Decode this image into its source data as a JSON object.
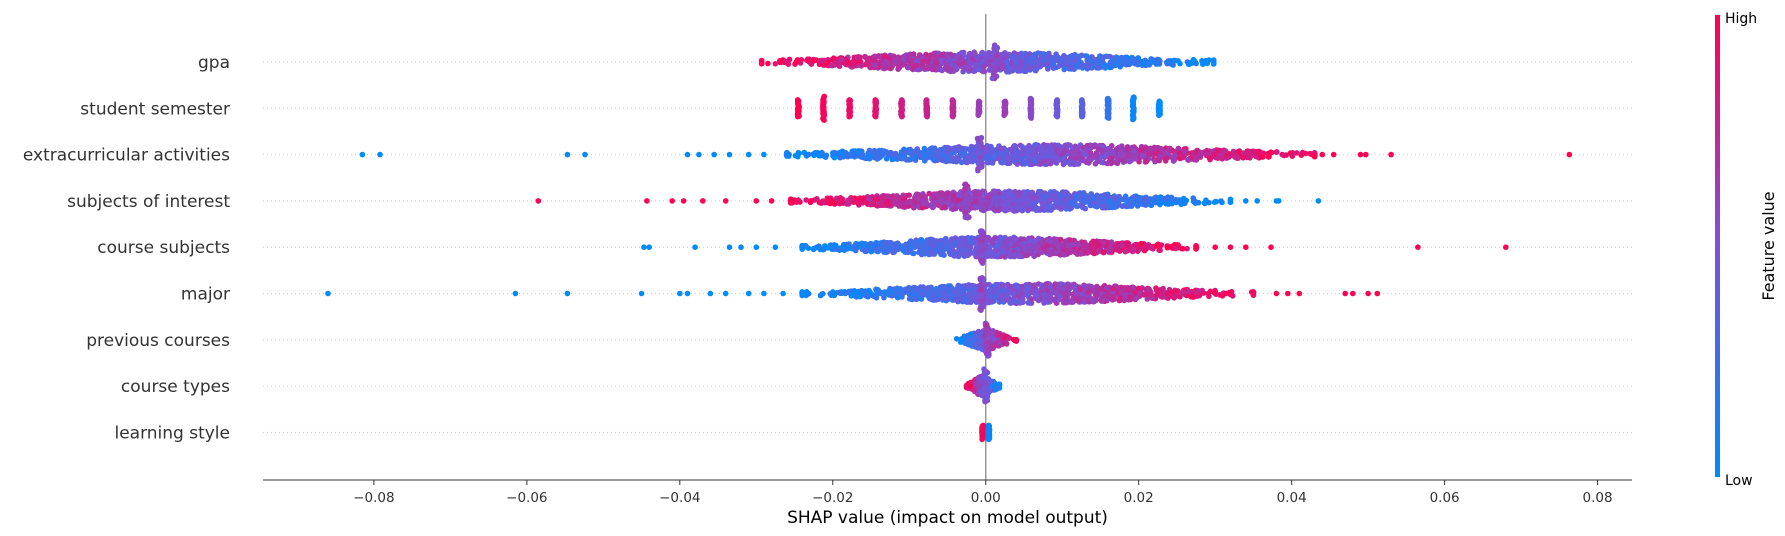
{
  "chart_data": {
    "type": "scatter",
    "subtype": "shap-beeswarm",
    "xlabel": "SHAP value (impact on model output)",
    "xlim": [
      -0.0945,
      0.0845
    ],
    "xticks": [
      -0.08,
      -0.06,
      -0.04,
      -0.02,
      0.0,
      0.02,
      0.04,
      0.06,
      0.08
    ],
    "xtick_labels": [
      "−0.08",
      "−0.06",
      "−0.04",
      "−0.02",
      "0.00",
      "0.02",
      "0.04",
      "0.06",
      "0.08"
    ],
    "zero_line": 0,
    "colors": {
      "low": "#008bfb",
      "high": "#ff0052",
      "grid": "#cccccc",
      "axis": "#333333",
      "zero_line": "#999999"
    },
    "colorbar": {
      "title": "Feature value",
      "high_label": "High",
      "low_label": "Low"
    },
    "features": [
      {
        "name": "gpa",
        "clouds": [
          {
            "from": -0.0293,
            "to": 0.0298,
            "color_from": 1.0,
            "color_to": 0.0,
            "n": 900
          }
        ],
        "spikes": [
          {
            "x": 0.0012,
            "width": 0.012,
            "color": 0.55
          }
        ]
      },
      {
        "name": "student semester",
        "clusters": [
          {
            "x": -0.0245,
            "width": 0.6,
            "color": 1.0
          },
          {
            "x": -0.0212,
            "width": 0.85,
            "color": 0.97
          },
          {
            "x": -0.0178,
            "width": 0.6,
            "color": 0.93
          },
          {
            "x": -0.0144,
            "width": 0.6,
            "color": 0.88
          },
          {
            "x": -0.011,
            "width": 0.6,
            "color": 0.82
          },
          {
            "x": -0.0077,
            "width": 0.6,
            "color": 0.78
          },
          {
            "x": -0.0043,
            "width": 0.6,
            "color": 0.74
          },
          {
            "x": -0.0009,
            "width": 0.5,
            "color": 0.62
          },
          {
            "x": 0.0025,
            "width": 0.5,
            "color": 0.62
          },
          {
            "x": 0.0059,
            "width": 0.7,
            "color": 0.55
          },
          {
            "x": 0.0093,
            "width": 0.6,
            "color": 0.45
          },
          {
            "x": 0.0126,
            "width": 0.6,
            "color": 0.36
          },
          {
            "x": 0.016,
            "width": 0.7,
            "color": 0.2
          },
          {
            "x": 0.0193,
            "width": 0.8,
            "color": 0.05
          },
          {
            "x": 0.0227,
            "width": 0.5,
            "color": 0.0
          }
        ]
      },
      {
        "name": "extracurricular activities",
        "clouds": [
          {
            "from": -0.026,
            "to": 0.043,
            "color_from": 0.0,
            "color_to": 1.0,
            "n": 1100
          }
        ],
        "spikes": [
          {
            "x": -0.0008,
            "width": 0.01,
            "color": 0.5
          }
        ],
        "outliers": [
          {
            "x": -0.0815,
            "color": 0.0
          },
          {
            "x": -0.0792,
            "color": 0.0
          },
          {
            "x": -0.0547,
            "color": 0.0
          },
          {
            "x": -0.0524,
            "color": 0.0
          },
          {
            "x": -0.039,
            "color": 0.0
          },
          {
            "x": -0.0375,
            "color": 0.0
          },
          {
            "x": -0.0355,
            "color": 0.0
          },
          {
            "x": -0.0335,
            "color": 0.0
          },
          {
            "x": -0.031,
            "color": 0.0
          },
          {
            "x": -0.029,
            "color": 0.0
          },
          {
            "x": 0.044,
            "color": 1.0
          },
          {
            "x": 0.0455,
            "color": 1.0
          },
          {
            "x": 0.049,
            "color": 1.0
          },
          {
            "x": 0.0497,
            "color": 1.0
          },
          {
            "x": 0.053,
            "color": 1.0
          },
          {
            "x": 0.0763,
            "color": 1.0
          }
        ]
      },
      {
        "name": "subjects of interest",
        "clouds": [
          {
            "from": -0.0255,
            "to": 0.032,
            "color_from": 1.0,
            "color_to": 0.0,
            "n": 1000
          }
        ],
        "spikes": [
          {
            "x": -0.0025,
            "width": 0.01,
            "color": 0.6
          }
        ],
        "outliers": [
          {
            "x": -0.0585,
            "color": 1.0
          },
          {
            "x": -0.0443,
            "color": 1.0
          },
          {
            "x": -0.041,
            "color": 1.0
          },
          {
            "x": -0.0395,
            "color": 1.0
          },
          {
            "x": -0.037,
            "color": 1.0
          },
          {
            "x": -0.034,
            "color": 1.0
          },
          {
            "x": -0.03,
            "color": 1.0
          },
          {
            "x": -0.028,
            "color": 1.0
          },
          {
            "x": 0.034,
            "color": 0.0
          },
          {
            "x": 0.0355,
            "color": 0.0
          },
          {
            "x": 0.038,
            "color": 0.0
          },
          {
            "x": 0.0383,
            "color": 0.0
          },
          {
            "x": 0.0435,
            "color": 0.0
          }
        ]
      },
      {
        "name": "course subjects",
        "clouds": [
          {
            "from": -0.024,
            "to": 0.0275,
            "color_from": 0.0,
            "color_to": 1.0,
            "n": 1000
          }
        ],
        "spikes": [
          {
            "x": -0.0006,
            "width": 0.01,
            "color": 0.55
          }
        ],
        "outliers": [
          {
            "x": -0.0447,
            "color": 0.0
          },
          {
            "x": -0.044,
            "color": 0.0
          },
          {
            "x": -0.038,
            "color": 0.0
          },
          {
            "x": -0.0335,
            "color": 0.0
          },
          {
            "x": -0.032,
            "color": 0.0
          },
          {
            "x": -0.03,
            "color": 0.0
          },
          {
            "x": -0.0275,
            "color": 0.0
          },
          {
            "x": 0.03,
            "color": 1.0
          },
          {
            "x": 0.032,
            "color": 1.0
          },
          {
            "x": 0.034,
            "color": 1.0
          },
          {
            "x": 0.0373,
            "color": 1.0
          },
          {
            "x": 0.0565,
            "color": 1.0
          },
          {
            "x": 0.068,
            "color": 1.0
          }
        ]
      },
      {
        "name": "major",
        "clouds": [
          {
            "from": -0.024,
            "to": 0.035,
            "color_from": 0.0,
            "color_to": 1.0,
            "n": 1000
          }
        ],
        "spikes": [
          {
            "x": -0.0005,
            "width": 0.01,
            "color": 0.55
          }
        ],
        "outliers": [
          {
            "x": -0.086,
            "color": 0.0
          },
          {
            "x": -0.0615,
            "color": 0.0
          },
          {
            "x": -0.0547,
            "color": 0.0
          },
          {
            "x": -0.045,
            "color": 0.0
          },
          {
            "x": -0.04,
            "color": 0.0
          },
          {
            "x": -0.039,
            "color": 0.0
          },
          {
            "x": -0.036,
            "color": 0.0
          },
          {
            "x": -0.034,
            "color": 0.0
          },
          {
            "x": -0.031,
            "color": 0.0
          },
          {
            "x": -0.029,
            "color": 0.0
          },
          {
            "x": -0.0265,
            "color": 0.0
          },
          {
            "x": 0.038,
            "color": 1.0
          },
          {
            "x": 0.0395,
            "color": 1.0
          },
          {
            "x": 0.041,
            "color": 1.0
          },
          {
            "x": 0.047,
            "color": 1.0
          },
          {
            "x": 0.048,
            "color": 1.0
          },
          {
            "x": 0.05,
            "color": 1.0
          },
          {
            "x": 0.0512,
            "color": 1.0
          }
        ]
      },
      {
        "name": "previous courses",
        "clouds": [
          {
            "from": -0.0038,
            "to": 0.004,
            "color_from": 0.0,
            "color_to": 1.0,
            "n": 260
          }
        ],
        "spikes": [
          {
            "x": 0.0002,
            "width": 0.008,
            "color": 0.6
          }
        ]
      },
      {
        "name": "course types",
        "clouds": [
          {
            "from": -0.0025,
            "to": 0.0018,
            "color_from": 1.0,
            "color_to": 0.0,
            "n": 220
          }
        ],
        "spikes": [
          {
            "x": 0.0,
            "width": 0.008,
            "color": 0.45
          }
        ]
      },
      {
        "name": "learning style",
        "clusters": [
          {
            "x": -0.0004,
            "width": 0.5,
            "color": 0.95
          },
          {
            "x": 0.0004,
            "width": 0.5,
            "color": 0.05
          }
        ]
      }
    ]
  }
}
